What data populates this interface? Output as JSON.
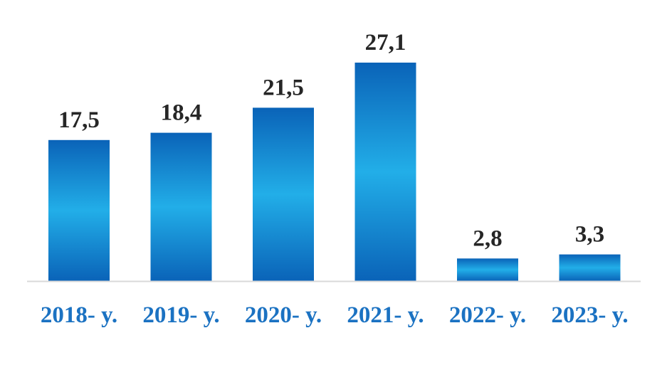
{
  "chart_data": {
    "type": "bar",
    "categories": [
      "2018- y.",
      "2019- y.",
      "2020- y.",
      "2021- y.",
      "2022- y.",
      "2023- y."
    ],
    "values": [
      17.5,
      18.4,
      21.5,
      27.1,
      2.8,
      3.3
    ],
    "data_labels": [
      "17,5",
      "18,4",
      "21,5",
      "27,1",
      "2,8",
      "3,3"
    ],
    "title": "",
    "xlabel": "",
    "ylabel": "",
    "ylim": [
      0,
      27.1
    ],
    "grid": false,
    "legend": "none"
  },
  "colors": {
    "bar_edge": "#0a63b8",
    "bar_center": "#22aee8",
    "category_text": "#1b72c2",
    "value_text": "#262626",
    "baseline": "#d9d9d9"
  }
}
